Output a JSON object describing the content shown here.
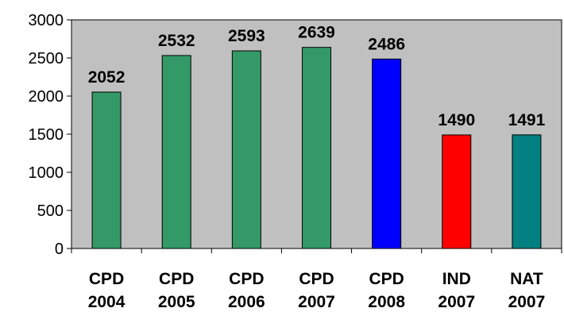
{
  "chart_data": {
    "type": "bar",
    "title": "",
    "xlabel": "",
    "ylabel": "",
    "ylim": [
      0,
      3000
    ],
    "yticks": [
      0,
      500,
      1000,
      1500,
      2000,
      2500,
      3000
    ],
    "grid": false,
    "legend": "none",
    "plot_background": "#c0c0c0",
    "categories": [
      [
        "CPD",
        "2004"
      ],
      [
        "CPD",
        "2005"
      ],
      [
        "CPD",
        "2006"
      ],
      [
        "CPD",
        "2007"
      ],
      [
        "CPD",
        "2008"
      ],
      [
        "IND",
        "2007"
      ],
      [
        "NAT",
        "2007"
      ]
    ],
    "values": [
      2052,
      2532,
      2593,
      2639,
      2486,
      1490,
      1491
    ],
    "colors": [
      "#339966",
      "#339966",
      "#339966",
      "#339966",
      "#0000ff",
      "#ff0000",
      "#008080"
    ]
  }
}
